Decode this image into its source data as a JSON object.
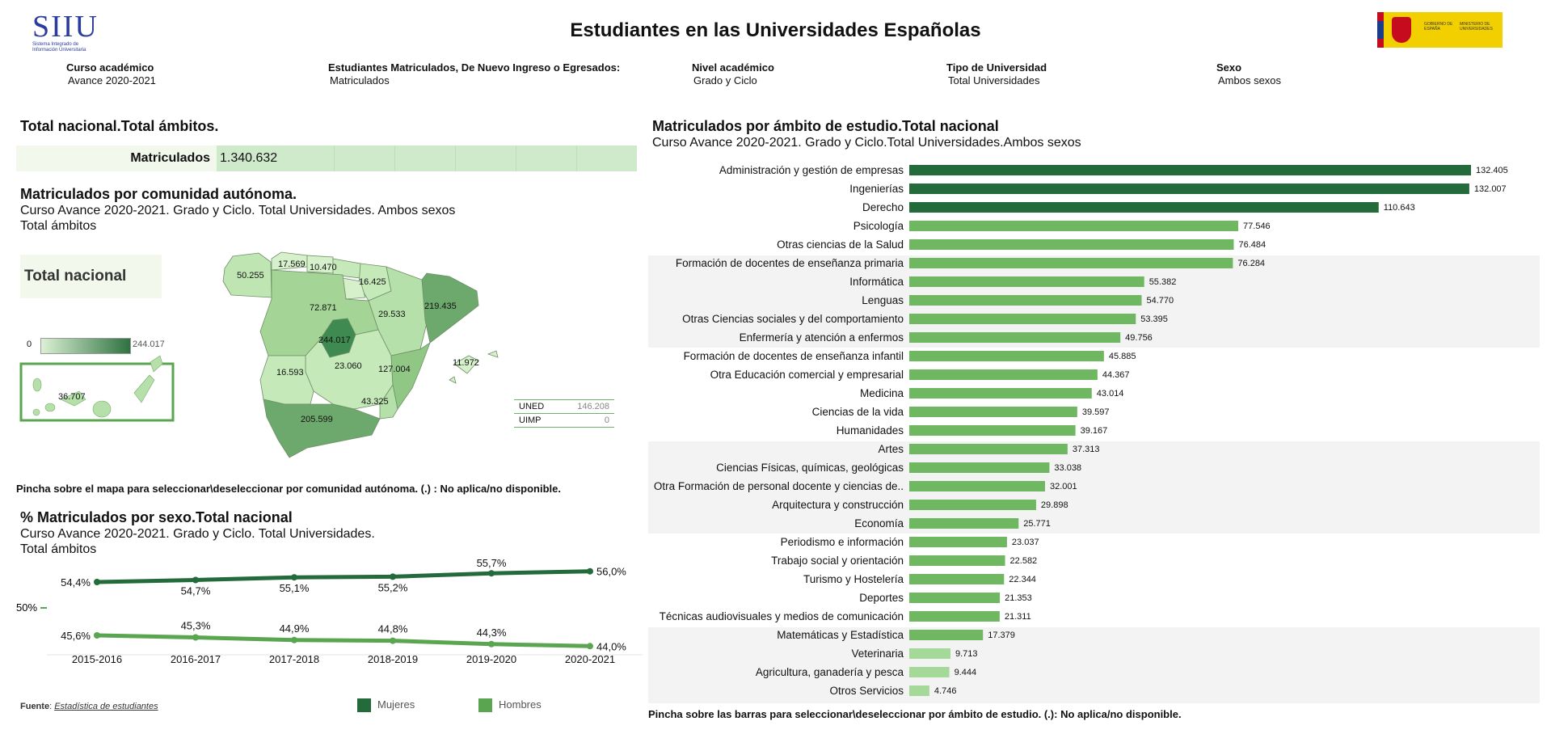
{
  "header": {
    "logo_text": "SIIU",
    "logo_subtitle_1": "Sistema Integrado de",
    "logo_subtitle_2": "Información Universitaria",
    "title": "Estudiantes en las Universidades Españolas",
    "gov_logo_text_1": "GOBIERNO DE ESPAÑA",
    "gov_logo_text_2": "MINISTERIO DE UNIVERSIDADES"
  },
  "filters": [
    {
      "label": "Curso académico",
      "value": "Avance 2020-2021"
    },
    {
      "label": "Estudiantes Matriculados, De Nuevo Ingreso o Egresados:",
      "value": "Matriculados"
    },
    {
      "label": "Nivel académico",
      "value": "Grado y Ciclo"
    },
    {
      "label": "Tipo de Universidad",
      "value": "Total Universidades"
    },
    {
      "label": "Sexo",
      "value": "Ambos sexos"
    }
  ],
  "kpi": {
    "title": "Total nacional.Total ámbitos.",
    "label": "Matriculados",
    "value": "1.340.632"
  },
  "map": {
    "title": "Matriculados por comunidad autónoma.",
    "subtitle": "Curso Avance 2020-2021. Grado y Ciclo. Total Universidades. Ambos sexos",
    "subtitle2": "Total ámbitos",
    "total_button": "Total nacional",
    "legend_min": "0",
    "legend_max": "244.017",
    "region_labels": [
      "50.255",
      "17.569",
      "10.470",
      "16.425",
      "72.871",
      "29.533",
      "219.435",
      "244.017",
      "16.593",
      "23.060",
      "127.004",
      "11.972",
      "43.325",
      "205.599",
      "36.707"
    ],
    "uned_label": "UNED",
    "uned_value": "146.208",
    "uimp_label": "UIMP",
    "uimp_value": "0",
    "colors": {
      "low": "#dbf1d3",
      "high": "#2e7240"
    },
    "note": "Pincha sobre el mapa para seleccionar\\deseleccionar por comunidad autónoma. (.) : No aplica/no disponible."
  },
  "sex": {
    "title": "% Matriculados por sexo.Total nacional",
    "subtitle": "Curso Avance 2020-2021. Grado y Ciclo. Total Universidades.",
    "subtitle2": "Total ámbitos",
    "axis_label": "50%",
    "source_label": "Fuente",
    "source_link": "Estadística de estudiantes",
    "legend": [
      "Mujeres",
      "Hombres"
    ],
    "colors": {
      "mujeres": "#236b3b",
      "hombres": "#5aa550"
    }
  },
  "chart_data": [
    {
      "type": "line",
      "x": [
        "2015-2016",
        "2016-2017",
        "2017-2018",
        "2018-2019",
        "2019-2020",
        "2020-2021"
      ],
      "series": [
        {
          "name": "Mujeres",
          "values": [
            54.4,
            54.7,
            55.1,
            55.2,
            55.7,
            56.0
          ],
          "labels": [
            "54,4%",
            "54,7%",
            "55,1%",
            "55,2%",
            "55,7%",
            "56,0%"
          ]
        },
        {
          "name": "Hombres",
          "values": [
            45.6,
            45.3,
            44.9,
            44.8,
            44.3,
            44.0
          ],
          "labels": [
            "45,6%",
            "45,3%",
            "44,9%",
            "44,8%",
            "44,3%",
            "44,0%"
          ]
        }
      ]
    },
    {
      "type": "bar",
      "orientation": "horizontal",
      "title": "Matriculados por ámbito de estudio.Total nacional",
      "subtitle": "Curso Avance 2020-2021. Grado y Ciclo.Total Universidades.Ambos sexos",
      "categories": [
        "Administración y gestión de empresas",
        "Ingenierías",
        "Derecho",
        "Psicología",
        "Otras ciencias de la Salud",
        "Formación de docentes de enseñanza primaria",
        "Informática",
        "Lenguas",
        "Otras Ciencias sociales y del comportamiento",
        "Enfermería y atención a enfermos",
        "Formación de docentes de enseñanza infantil",
        "Otra Educación comercial y empresarial",
        "Medicina",
        "Ciencias de la vida",
        "Humanidades",
        "Artes",
        "Ciencias Físicas, químicas, geológicas",
        "Otra Formación de personal docente y ciencias de..",
        "Arquitectura y construcción",
        "Economía",
        "Periodismo e información",
        "Trabajo social y orientación",
        "Turismo y Hostelería",
        "Deportes",
        "Técnicas audiovisuales y medios de comunicación",
        "Matemáticas y Estadística",
        "Veterinaria",
        "Agricultura, ganadería y pesca",
        "Otros Servicios"
      ],
      "values": [
        132405,
        132007,
        110643,
        77546,
        76484,
        76284,
        55382,
        54770,
        53395,
        49756,
        45885,
        44367,
        43014,
        39597,
        39167,
        37313,
        33038,
        32001,
        29898,
        25771,
        23037,
        22582,
        22344,
        21353,
        21311,
        17379,
        9713,
        9444,
        4746
      ],
      "labels": [
        "132.405",
        "132.007",
        "110.643",
        "77.546",
        "76.484",
        "76.284",
        "55.382",
        "54.770",
        "53.395",
        "49.756",
        "45.885",
        "44.367",
        "43.014",
        "39.597",
        "39.167",
        "37.313",
        "33.038",
        "32.001",
        "29.898",
        "25.771",
        "23.037",
        "22.582",
        "22.344",
        "21.353",
        "21.311",
        "17.379",
        "9.713",
        "9.444",
        "4.746"
      ],
      "colors": {
        "high": "#236b3b",
        "mid": "#6fb760",
        "low": "#a5d999"
      }
    }
  ],
  "bars_note": "Pincha sobre las barras para seleccionar\\deseleccionar por ámbito de estudio. (.): No aplica/no disponible."
}
